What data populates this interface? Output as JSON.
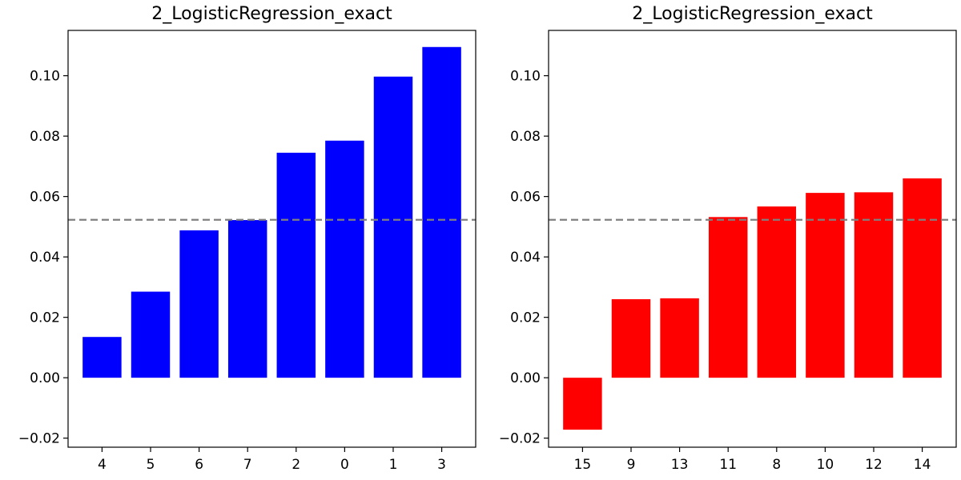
{
  "chart_data": [
    {
      "type": "bar",
      "title": "2_LogisticRegression_exact",
      "categories": [
        "4",
        "5",
        "6",
        "7",
        "2",
        "0",
        "1",
        "3"
      ],
      "values": [
        0.0135,
        0.0285,
        0.0488,
        0.0522,
        0.0745,
        0.0785,
        0.0997,
        0.1095
      ],
      "color": "#0000ff",
      "reference_line": 0.0523,
      "reference_color": "#808080",
      "ylim": [
        -0.023,
        0.115
      ],
      "yticks": [
        "−0.02",
        "0.00",
        "0.02",
        "0.04",
        "0.06",
        "0.08",
        "0.10"
      ],
      "ytick_values": [
        -0.02,
        0.0,
        0.02,
        0.04,
        0.06,
        0.08,
        0.1
      ],
      "xlabel": "",
      "ylabel": "",
      "grid": false
    },
    {
      "type": "bar",
      "title": "2_LogisticRegression_exact",
      "categories": [
        "15",
        "9",
        "13",
        "11",
        "8",
        "10",
        "12",
        "14"
      ],
      "values": [
        -0.0172,
        0.026,
        0.0263,
        0.0532,
        0.0567,
        0.0612,
        0.0614,
        0.066
      ],
      "color": "#ff0000",
      "reference_line": 0.0523,
      "reference_color": "#808080",
      "ylim": [
        -0.023,
        0.115
      ],
      "yticks": [
        "−0.02",
        "0.00",
        "0.02",
        "0.04",
        "0.06",
        "0.08",
        "0.10"
      ],
      "ytick_values": [
        -0.02,
        0.0,
        0.02,
        0.04,
        0.06,
        0.08,
        0.1
      ],
      "xlabel": "",
      "ylabel": "",
      "grid": false
    }
  ]
}
